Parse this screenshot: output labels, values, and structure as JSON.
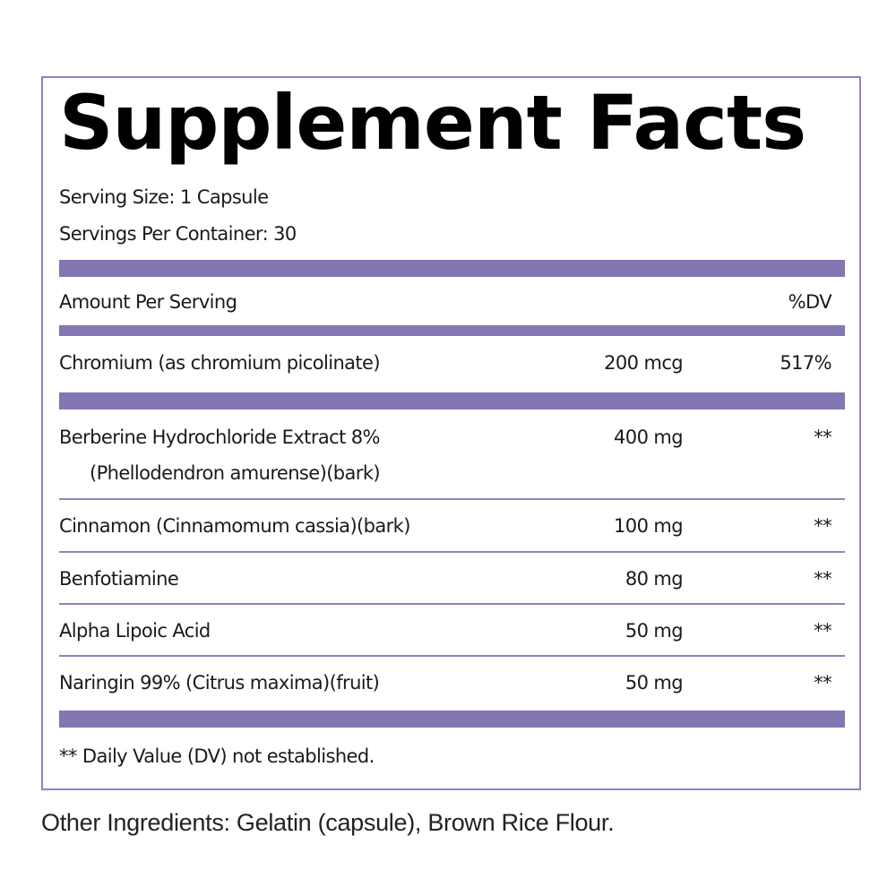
{
  "title": "Supplement Facts",
  "serving_size": "Serving Size: 1 Capsule",
  "servings_per_container": "Servings Per Container: 30",
  "header": {
    "amount": "Amount Per Serving",
    "dv": "%DV"
  },
  "rows": [
    {
      "name": "Chromium (as chromium picolinate)",
      "amount": "200 mcg",
      "dv": "517%"
    },
    {
      "name": "Berberine Hydrochloride Extract 8%",
      "subname": "(Phellodendron amurense)(bark)",
      "amount": "400 mg",
      "dv": "**"
    },
    {
      "name": "Cinnamon (Cinnamomum cassia)(bark)",
      "amount": "100 mg",
      "dv": "**"
    },
    {
      "name": "Benfotiamine",
      "amount": "80 mg",
      "dv": "**"
    },
    {
      "name": "Alpha Lipoic Acid",
      "amount": "50 mg",
      "dv": "**"
    },
    {
      "name": "Naringin 99% (Citrus maxima)(fruit)",
      "amount": "50 mg",
      "dv": "**"
    }
  ],
  "footnote": "** Daily Value (DV) not established.",
  "other_ingredients": "Other Ingredients: Gelatin (capsule), Brown Rice Flour.",
  "colors": {
    "bar": "#8376b3",
    "border": "#8e84c4"
  }
}
